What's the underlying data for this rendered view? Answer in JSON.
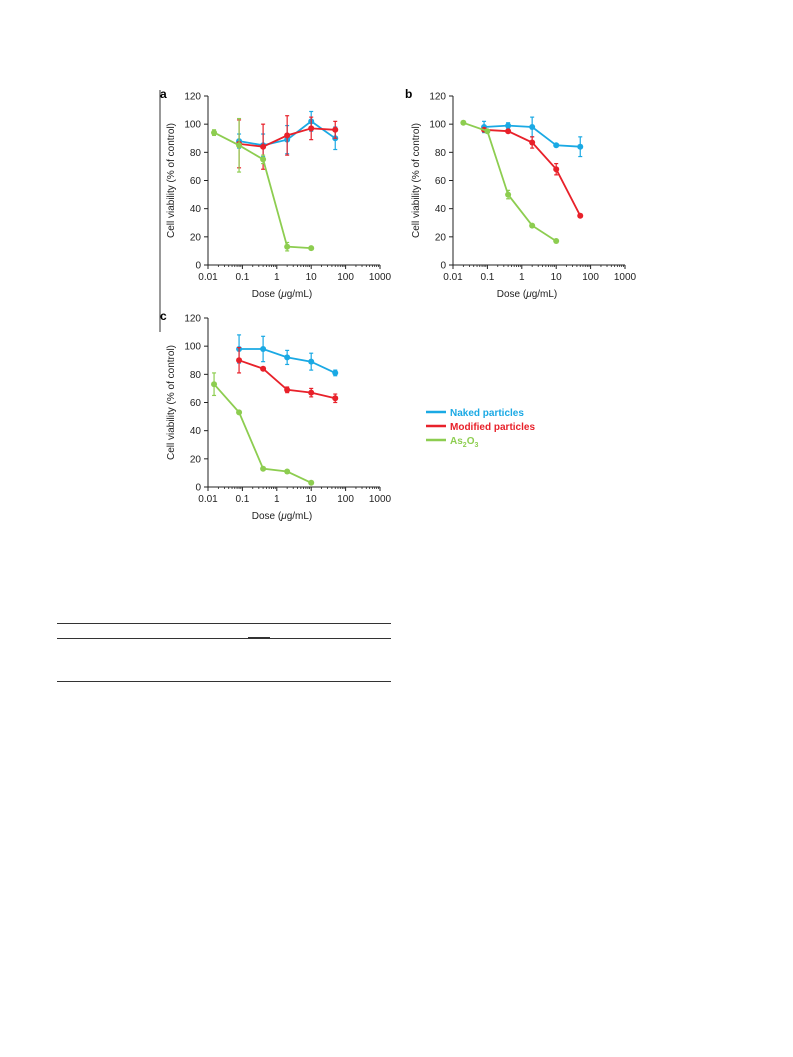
{
  "colors": {
    "naked": "#1aa9e4",
    "modified": "#e8212a",
    "as2o3": "#8dcd50"
  },
  "legend": [
    {
      "label": "Naked particles",
      "color": "#1aa9e4"
    },
    {
      "label": "Modified particles",
      "color": "#e8212a"
    },
    {
      "label": "As",
      "sub1": "2",
      "mid": "O",
      "sub2": "3",
      "color": "#8dcd50"
    }
  ],
  "chart_data": [
    {
      "panel": "a",
      "type": "line",
      "xscale": "log",
      "xlim": [
        0.01,
        1000
      ],
      "ylim": [
        0,
        120
      ],
      "xticks": [
        "0.01",
        "0.1",
        "1",
        "10",
        "100",
        "1000"
      ],
      "yticks": [
        "0",
        "20",
        "40",
        "60",
        "80",
        "100",
        "120"
      ],
      "xlabel_pre": "Dose (",
      "xlabel_mu": "μ",
      "xlabel_post": "g/mL)",
      "ylabel": "Cell viability (% of control)",
      "series": [
        {
          "key": "naked",
          "x": [
            0.08,
            0.4,
            2,
            10,
            50
          ],
          "y": [
            88,
            85,
            89,
            102,
            90
          ],
          "err": [
            5,
            8,
            10,
            7,
            8
          ]
        },
        {
          "key": "modified",
          "x": [
            0.08,
            0.4,
            2,
            10,
            50
          ],
          "y": [
            86,
            84,
            92,
            97,
            96
          ],
          "err": [
            17,
            16,
            14,
            8,
            6
          ]
        },
        {
          "key": "as2o3",
          "x": [
            0.015,
            0.08,
            0.4,
            2,
            10
          ],
          "y": [
            94,
            85,
            75,
            13,
            12
          ],
          "err": [
            2,
            19,
            3,
            3,
            1
          ]
        }
      ]
    },
    {
      "panel": "b",
      "type": "line",
      "xscale": "log",
      "xlim": [
        0.01,
        1000
      ],
      "ylim": [
        0,
        120
      ],
      "xticks": [
        "0.01",
        "0.1",
        "1",
        "10",
        "100",
        "1000"
      ],
      "yticks": [
        "0",
        "20",
        "40",
        "60",
        "80",
        "100",
        "120"
      ],
      "xlabel_pre": "Dose (",
      "xlabel_mu": "μ",
      "xlabel_post": "g/mL)",
      "ylabel": "Cell viability (% of control)",
      "series": [
        {
          "key": "naked",
          "x": [
            0.08,
            0.4,
            2,
            10,
            50
          ],
          "y": [
            98,
            99,
            98,
            85,
            84
          ],
          "err": [
            4,
            2,
            7,
            1,
            7
          ]
        },
        {
          "key": "modified",
          "x": [
            0.08,
            0.4,
            2,
            10,
            50
          ],
          "y": [
            96,
            95,
            87,
            68,
            35
          ],
          "err": [
            1,
            1,
            4,
            4,
            1
          ]
        },
        {
          "key": "as2o3",
          "x": [
            0.02,
            0.1,
            0.4,
            2,
            10
          ],
          "y": [
            101,
            95,
            50,
            28,
            17
          ],
          "err": [
            1,
            1,
            3,
            1,
            1
          ]
        }
      ]
    },
    {
      "panel": "c",
      "type": "line",
      "xscale": "log",
      "xlim": [
        0.01,
        1000
      ],
      "ylim": [
        0,
        120
      ],
      "xticks": [
        "0.01",
        "0.1",
        "1",
        "10",
        "100",
        "1000"
      ],
      "yticks": [
        "0",
        "20",
        "40",
        "60",
        "80",
        "100",
        "120"
      ],
      "xlabel_pre": "Dose (",
      "xlabel_mu": "μ",
      "xlabel_post": "g/mL)",
      "ylabel": "Cell viability (% of control)",
      "series": [
        {
          "key": "naked",
          "x": [
            0.08,
            0.4,
            2,
            10,
            50
          ],
          "y": [
            98,
            98,
            92,
            89,
            81
          ],
          "err": [
            10,
            9,
            5,
            6,
            2
          ]
        },
        {
          "key": "modified",
          "x": [
            0.08,
            0.4,
            2,
            10,
            50
          ],
          "y": [
            90,
            84,
            69,
            67,
            63
          ],
          "err": [
            9,
            1,
            2,
            3,
            3
          ]
        },
        {
          "key": "as2o3",
          "x": [
            0.015,
            0.08,
            0.4,
            2,
            10
          ],
          "y": [
            73,
            53,
            13,
            11,
            3
          ],
          "err": [
            8,
            1,
            1,
            1,
            1
          ]
        }
      ]
    }
  ]
}
